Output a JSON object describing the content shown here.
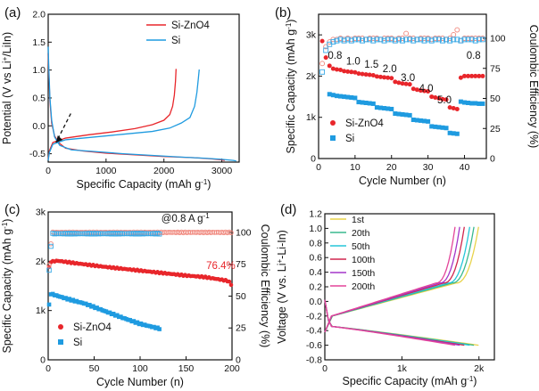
{
  "colors": {
    "si_zno4": "#e8262b",
    "si": "#1f9be0",
    "si_ce": "#38a9e6",
    "si_zno4_ce": "#f0857a",
    "d_1st": "#e8d34a",
    "d_20th": "#39b98e",
    "d_50th": "#26c6d8",
    "d_100th": "#d1264e",
    "d_150th": "#a436c9",
    "d_200th": "#e3459a"
  },
  "chart_data": [
    {
      "id": "a",
      "panel_label": "(a)",
      "type": "line",
      "xlabel": "Specific Capacity (mAh g",
      "xlabel_sup": "-1",
      "xlabel_tail": ")",
      "ylabel": "Potential (V vs Li",
      "ylabel_sup": "+",
      "ylabel_tail": "/LiIn)",
      "xlim": [
        0,
        3300
      ],
      "ylim": [
        -0.65,
        2.0
      ],
      "xticks": [
        0,
        1000,
        2000,
        3000
      ],
      "yticks": [
        -0.5,
        0.0,
        0.5,
        1.0,
        1.5,
        2.0
      ],
      "ytick_labels": [
        "-0.5",
        "0.0",
        "0.5",
        "1.0",
        "1.5",
        "2.0"
      ],
      "legend": [
        "Si-ZnO4",
        "Si"
      ],
      "annotation": "dashed arrow pointing to plateau near -0.35 V",
      "series": [
        {
          "name": "Si-ZnO4",
          "color_key": "si_zno4",
          "discharge": [
            [
              0,
              1.3
            ],
            [
              10,
              0.95
            ],
            [
              30,
              0.45
            ],
            [
              60,
              0.05
            ],
            [
              110,
              -0.18
            ],
            [
              180,
              -0.3
            ],
            [
              300,
              -0.4
            ],
            [
              600,
              -0.45
            ],
            [
              1000,
              -0.49
            ],
            [
              1500,
              -0.52
            ],
            [
              2000,
              -0.55
            ],
            [
              2500,
              -0.57
            ],
            [
              2800,
              -0.59
            ],
            [
              3000,
              -0.61
            ],
            [
              3050,
              -0.62
            ]
          ],
          "charge": [
            [
              0,
              -0.6
            ],
            [
              20,
              -0.45
            ],
            [
              80,
              -0.3
            ],
            [
              300,
              -0.22
            ],
            [
              700,
              -0.16
            ],
            [
              1100,
              -0.11
            ],
            [
              1500,
              -0.05
            ],
            [
              1800,
              0.02
            ],
            [
              2000,
              0.1
            ],
            [
              2100,
              0.2
            ],
            [
              2150,
              0.35
            ],
            [
              2180,
              0.55
            ],
            [
              2200,
              0.8
            ],
            [
              2210,
              1.02
            ]
          ]
        },
        {
          "name": "Si",
          "color_key": "si",
          "discharge": [
            [
              0,
              1.42
            ],
            [
              10,
              1.05
            ],
            [
              30,
              0.5
            ],
            [
              60,
              0.1
            ],
            [
              110,
              -0.2
            ],
            [
              200,
              -0.35
            ],
            [
              400,
              -0.43
            ],
            [
              800,
              -0.46
            ],
            [
              1300,
              -0.5
            ],
            [
              1800,
              -0.53
            ],
            [
              2300,
              -0.56
            ],
            [
              2700,
              -0.58
            ],
            [
              3000,
              -0.6
            ],
            [
              3200,
              -0.62
            ],
            [
              3250,
              -0.63
            ]
          ],
          "charge": [
            [
              0,
              -0.62
            ],
            [
              20,
              -0.48
            ],
            [
              80,
              -0.33
            ],
            [
              300,
              -0.25
            ],
            [
              800,
              -0.2
            ],
            [
              1300,
              -0.15
            ],
            [
              1800,
              -0.1
            ],
            [
              2100,
              -0.04
            ],
            [
              2300,
              0.05
            ],
            [
              2450,
              0.15
            ],
            [
              2530,
              0.35
            ],
            [
              2570,
              0.6
            ],
            [
              2595,
              0.85
            ],
            [
              2610,
              1.01
            ]
          ]
        }
      ]
    },
    {
      "id": "b",
      "panel_label": "(b)",
      "type": "scatter",
      "xlabel": "Cycle Number (n)",
      "ylabel": "Specific Capacity (mAh g",
      "ylabel_sup": "-1",
      "ylabel_tail": ")",
      "y2label": "Coulombic Efficiency (%)",
      "xlim": [
        0,
        46
      ],
      "ylim": [
        0,
        3500
      ],
      "y2lim": [
        0,
        120
      ],
      "xticks": [
        0,
        10,
        20,
        30,
        40
      ],
      "yticks": [
        0,
        1000,
        2000,
        3000
      ],
      "ytick_labels": [
        "0",
        "1k",
        "2k",
        "3k"
      ],
      "y2ticks": [
        0,
        25,
        50,
        75,
        100
      ],
      "legend": [
        "Si-ZnO4",
        "Si"
      ],
      "rate_labels": [
        {
          "text": "0.8",
          "x": 4.5,
          "y": 2420
        },
        {
          "text": "1.0",
          "x": 9.5,
          "y": 2280
        },
        {
          "text": "1.5",
          "x": 14.5,
          "y": 2200
        },
        {
          "text": "2.0",
          "x": 19.5,
          "y": 2100
        },
        {
          "text": "3.0",
          "x": 24.5,
          "y": 1880
        },
        {
          "text": "4.0",
          "x": 29.5,
          "y": 1620
        },
        {
          "text": "5.0",
          "x": 34.5,
          "y": 1340
        },
        {
          "text": "0.8",
          "x": 42.5,
          "y": 2420
        }
      ],
      "series": [
        {
          "name": "Si-ZnO4",
          "color_key": "si_zno4",
          "marker": "circle",
          "axis": "left",
          "x": [
            1,
            2,
            3,
            4,
            5,
            6,
            7,
            8,
            9,
            10,
            11,
            12,
            13,
            14,
            15,
            16,
            17,
            18,
            19,
            20,
            21,
            22,
            23,
            24,
            25,
            26,
            27,
            28,
            29,
            30,
            31,
            32,
            33,
            34,
            35,
            36,
            37,
            38,
            39,
            40,
            41,
            42,
            43,
            44,
            45
          ],
          "values": [
            2850,
            2450,
            2250,
            2180,
            2160,
            2150,
            2120,
            2110,
            2100,
            2090,
            2060,
            2050,
            2040,
            2030,
            2020,
            1990,
            1980,
            1970,
            1960,
            1950,
            1860,
            1840,
            1820,
            1810,
            1800,
            1690,
            1670,
            1650,
            1640,
            1630,
            1500,
            1480,
            1460,
            1440,
            1430,
            1240,
            1220,
            1200,
            1960,
            2000,
            2000,
            2000,
            2000,
            2000,
            2000
          ]
        },
        {
          "name": "Si",
          "color_key": "si",
          "marker": "square",
          "axis": "left",
          "x": [
            3,
            4,
            5,
            6,
            7,
            8,
            9,
            10,
            11,
            12,
            13,
            14,
            15,
            16,
            17,
            18,
            19,
            20,
            21,
            22,
            23,
            24,
            25,
            26,
            27,
            28,
            29,
            30,
            31,
            32,
            33,
            34,
            35,
            36,
            37,
            38,
            39,
            40,
            41,
            42,
            43,
            44,
            45
          ],
          "values": [
            1560,
            1540,
            1520,
            1510,
            1500,
            1490,
            1480,
            1470,
            1370,
            1360,
            1350,
            1340,
            1330,
            1240,
            1230,
            1220,
            1210,
            1200,
            1090,
            1080,
            1070,
            1060,
            1050,
            940,
            930,
            920,
            910,
            900,
            780,
            770,
            760,
            750,
            740,
            620,
            610,
            600,
            1380,
            1360,
            1350,
            1340,
            1340,
            1330,
            1330
          ]
        },
        {
          "name": "Si-ZnO4 CE",
          "color_key": "si_zno4_ce",
          "marker": "circle-open",
          "axis": "right",
          "x": [
            1,
            2,
            3,
            4,
            5,
            6,
            7,
            8,
            9,
            10,
            11,
            12,
            13,
            14,
            15,
            16,
            17,
            18,
            19,
            20,
            21,
            22,
            23,
            24,
            25,
            26,
            27,
            28,
            29,
            30,
            31,
            32,
            33,
            34,
            35,
            36,
            37,
            38,
            39,
            40,
            41,
            42,
            43,
            44,
            45
          ],
          "values": [
            79,
            93,
            97,
            99,
            99,
            100,
            99,
            100,
            99,
            100,
            100,
            100,
            99,
            100,
            100,
            100,
            99,
            100,
            100,
            100,
            99,
            100,
            100,
            104,
            100,
            100,
            99,
            100,
            100,
            100,
            99,
            100,
            100,
            100,
            99,
            100,
            103,
            107,
            98,
            100,
            100,
            100,
            100,
            100,
            100
          ]
        },
        {
          "name": "Si CE",
          "color_key": "si_ce",
          "marker": "square-open",
          "axis": "right",
          "x": [
            1,
            2,
            3,
            4,
            5,
            6,
            7,
            8,
            9,
            10,
            11,
            12,
            13,
            14,
            15,
            16,
            17,
            18,
            19,
            20,
            21,
            22,
            23,
            24,
            25,
            26,
            27,
            28,
            29,
            30,
            31,
            32,
            33,
            34,
            35,
            36,
            37,
            38,
            39,
            40,
            41,
            42,
            43,
            44,
            45
          ],
          "values": [
            72,
            90,
            95,
            97,
            98,
            99,
            98,
            99,
            98,
            99,
            99,
            98,
            99,
            99,
            98,
            99,
            99,
            98,
            99,
            99,
            98,
            99,
            98,
            99,
            99,
            98,
            99,
            99,
            98,
            99,
            98,
            99,
            99,
            98,
            99,
            98,
            99,
            99,
            98,
            99,
            99,
            99,
            98,
            99,
            99
          ]
        }
      ]
    },
    {
      "id": "c",
      "panel_label": "(c)",
      "type": "scatter",
      "xlabel": "Cycle Number (n)",
      "ylabel": "Specific Capacity (mAh g",
      "ylabel_sup": "-1",
      "ylabel_tail": ")",
      "y2label": "Coulombic Efficiency (%)",
      "xlim": [
        0,
        200
      ],
      "ylim": [
        0,
        3000
      ],
      "y2lim": [
        0,
        116
      ],
      "xticks": [
        0,
        50,
        100,
        150,
        200
      ],
      "yticks": [
        0,
        1000,
        2000,
        3000
      ],
      "ytick_labels": [
        "0",
        "1k",
        "2k",
        "3k"
      ],
      "y2ticks": [
        0,
        25,
        50,
        75,
        100
      ],
      "legend": [
        "Si-ZnO4",
        "Si"
      ],
      "annotations": [
        {
          "text": "@0.8 A g",
          "sup": "-1",
          "x": 123,
          "y": 2800
        },
        {
          "text": "76.4%",
          "x": 172,
          "y": 1840
        }
      ],
      "series": [
        {
          "name": "Si-ZnO4",
          "color_key": "si_zno4",
          "marker": "circle",
          "axis": "left",
          "trend": [
            [
              1,
              1870
            ],
            [
              3,
              1990
            ],
            [
              10,
              2010
            ],
            [
              30,
              1960
            ],
            [
              60,
              1890
            ],
            [
              90,
              1830
            ],
            [
              120,
              1770
            ],
            [
              150,
              1710
            ],
            [
              170,
              1680
            ],
            [
              190,
              1620
            ],
            [
              196,
              1600
            ],
            [
              199,
              1530
            ]
          ]
        },
        {
          "name": "Si",
          "color_key": "si",
          "marker": "square",
          "axis": "left",
          "trend": [
            [
              1,
              1110
            ],
            [
              3,
              1340
            ],
            [
              20,
              1240
            ],
            [
              40,
              1140
            ],
            [
              60,
              1000
            ],
            [
              80,
              860
            ],
            [
              100,
              730
            ],
            [
              115,
              660
            ],
            [
              122,
              630
            ]
          ]
        },
        {
          "name": "Si-ZnO4 CE",
          "color_key": "si_zno4_ce",
          "marker": "circle-open",
          "axis": "right",
          "trend": [
            [
              1,
              74
            ],
            [
              4,
              100
            ],
            [
              200,
              100
            ]
          ]
        },
        {
          "name": "Si CE",
          "color_key": "si_ce",
          "marker": "square-open",
          "axis": "right",
          "trend": [
            [
              1,
              70
            ],
            [
              4,
              99
            ],
            [
              122,
              99
            ]
          ]
        }
      ]
    },
    {
      "id": "d",
      "panel_label": "(d)",
      "type": "line",
      "xlabel": "Specific Capacity (mAh g",
      "xlabel_sup": "-1",
      "xlabel_tail": ")",
      "ylabel": "Voltage (V vs. Li",
      "ylabel_sup": "+",
      "ylabel_tail": "-Li-In)",
      "xlim": [
        0,
        2200
      ],
      "ylim": [
        -0.8,
        1.2
      ],
      "xticks": [
        0,
        1000,
        2000
      ],
      "xtick_labels": [
        "0",
        "1k",
        "2k"
      ],
      "yticks": [
        -0.8,
        -0.6,
        -0.4,
        -0.2,
        0.0,
        0.2,
        0.4,
        0.6,
        0.8,
        1.0,
        1.2
      ],
      "ytick_labels": [
        "-0.8",
        "-0.6",
        "-0.4",
        "-0.2",
        "0.0",
        "0.2",
        "0.4",
        "0.6",
        "0.8",
        "1.0",
        "1.2"
      ],
      "legend": [
        "1st",
        "20th",
        "50th",
        "100th",
        "150th",
        "200th"
      ],
      "series": [
        {
          "name": "1st",
          "color_key": "d_1st",
          "cap": 1995
        },
        {
          "name": "20th",
          "color_key": "d_20th",
          "cap": 1935
        },
        {
          "name": "50th",
          "color_key": "d_50th",
          "cap": 1880
        },
        {
          "name": "100th",
          "color_key": "d_100th",
          "cap": 1810
        },
        {
          "name": "150th",
          "color_key": "d_150th",
          "cap": 1750
        },
        {
          "name": "200th",
          "color_key": "d_200th",
          "cap": 1690
        }
      ]
    }
  ]
}
